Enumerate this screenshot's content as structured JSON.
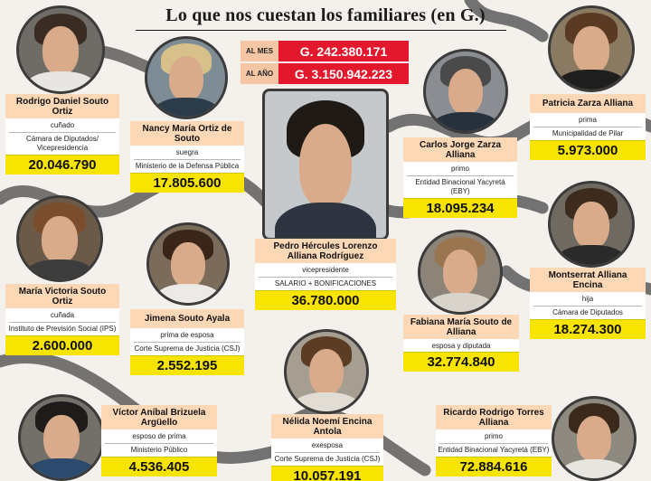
{
  "title": "Lo que nos cuestan los familiares (en G.)",
  "totals": [
    {
      "label": "AL MES",
      "value": "G. 242.380.171"
    },
    {
      "label": "AL AÑO",
      "value": "G. 3.150.942.223"
    }
  ],
  "people": {
    "pedro": {
      "name": "Pedro Hércules Lorenzo Alliana Rodríguez",
      "role": "vicepresidente",
      "institution": "SALARIO + BONIFICACIONES",
      "amount": "36.780.000"
    },
    "rodrigo": {
      "name": "Rodrigo Daniel Souto Ortiz",
      "role": "cuñado",
      "institution": "Cámara de Diputados/ Vicepresidencia",
      "amount": "20.046.790"
    },
    "nancy": {
      "name": "Nancy María Ortiz de Souto",
      "role": "suegra",
      "institution": "Ministerio de la Defensa Pública",
      "amount": "17.805.600"
    },
    "carlos": {
      "name": "Carlos Jorge Zarza Alliana",
      "role": "primo",
      "institution": "Entidad Binacional Yacyretá (EBY)",
      "amount": "18.095.234"
    },
    "patricia": {
      "name": "Patricia Zarza Alliana",
      "role": "prima",
      "institution": "Municipalidad de Pilar",
      "amount": "5.973.000"
    },
    "maria": {
      "name": "María Victoria Souto Ortiz",
      "role": "cuñada",
      "institution": "Instituto de Previsión Social (IPS)",
      "amount": "2.600.000"
    },
    "jimena": {
      "name": "Jimena Souto Ayala",
      "role": "prima de esposa",
      "institution": "Corte Suprema de Justicia (CSJ)",
      "amount": "2.552.195"
    },
    "fabiana": {
      "name": "Fabiana María Souto de Alliana",
      "role": "esposa y diputada",
      "institution": "",
      "amount": "32.774.840"
    },
    "montserrat": {
      "name": "Montserrat Alliana Encina",
      "role": "hija",
      "institution": "Cámara de Diputados",
      "amount": "18.274.300"
    },
    "victor": {
      "name": "Víctor Aníbal Brizuela Argüello",
      "role": "esposo de prima",
      "institution": "Ministerio Público",
      "amount": "4.536.405"
    },
    "nelida": {
      "name": "Nélida Noemí Encina Antola",
      "role": "exesposa",
      "institution": "Corte Suprema de Justicia (CSJ)",
      "amount": "10.057.191"
    },
    "ricardo": {
      "name": "Ricardo Rodrigo Torres Alliana",
      "role": "primo",
      "institution": "Entidad Binacional Yacyretá (EBY)",
      "amount": "72.884.616"
    }
  },
  "colors": {
    "background": "#f4f1ec",
    "name_band": "#fcd8b6",
    "amount_band": "#f7e400",
    "totals_red": "#e3182d",
    "connector": "#5d5d5d"
  }
}
